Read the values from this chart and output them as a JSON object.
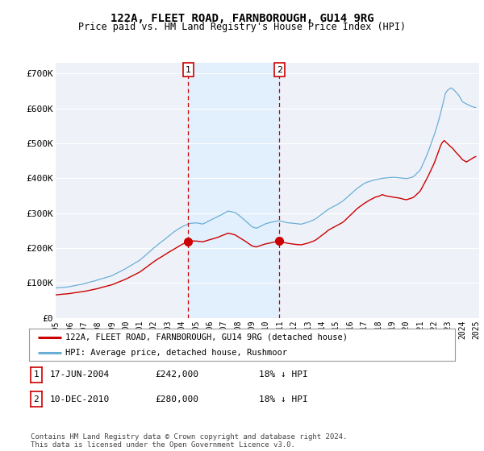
{
  "title": "122A, FLEET ROAD, FARNBOROUGH, GU14 9RG",
  "subtitle": "Price paid vs. HM Land Registry's House Price Index (HPI)",
  "ylabel_ticks": [
    "£0",
    "£100K",
    "£200K",
    "£300K",
    "£400K",
    "£500K",
    "£600K",
    "£700K"
  ],
  "ylim": [
    0,
    730000
  ],
  "hpi_color": "#6aaed6",
  "price_color": "#cc0000",
  "vline_color": "#cc0000",
  "shade_color": "#ddeeff",
  "marker1_date_idx": 113,
  "marker2_date_idx": 185,
  "marker1_price": 242000,
  "marker2_price": 280000,
  "legend_entry1": "122A, FLEET ROAD, FARNBOROUGH, GU14 9RG (detached house)",
  "legend_entry2": "HPI: Average price, detached house, Rushmoor",
  "footer": "Contains HM Land Registry data © Crown copyright and database right 2024.\nThis data is licensed under the Open Government Licence v3.0.",
  "bg_color": "#ffffff",
  "plot_bg_color": "#eef2f8",
  "grid_color": "#ffffff",
  "xlim_start": 1995.5,
  "xlim_end": 2025.0
}
